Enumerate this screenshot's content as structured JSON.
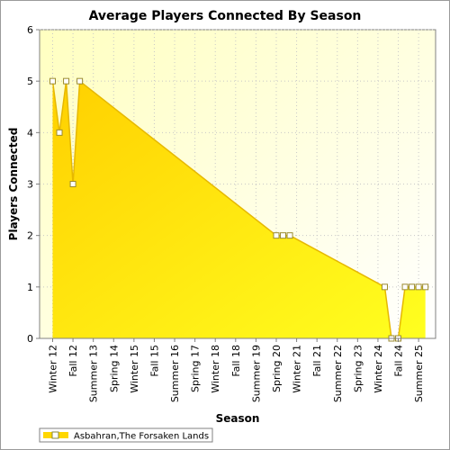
{
  "chart_data": {
    "type": "area",
    "title": "Average Players Connected By Season",
    "xlabel": "Season",
    "ylabel": "Players Connected",
    "ylim": [
      0,
      6
    ],
    "y_ticks": [
      0,
      1,
      2,
      3,
      4,
      5,
      6
    ],
    "grid": true,
    "legend_position": "bottom-left",
    "x_tick_labels": [
      "Winter 12",
      "Fall 12",
      "Summer 13",
      "Spring 14",
      "Winter 15",
      "Fall 15",
      "Summer 16",
      "Spring 17",
      "Winter 18",
      "Fall 18",
      "Summer 19",
      "Spring 20",
      "Winter 21",
      "Fall 21",
      "Summer 22",
      "Spring 23",
      "Winter 24",
      "Fall 24",
      "Summer 25"
    ],
    "series": [
      {
        "name": "Asbahran,The Forsaken Lands",
        "color": "#ffd700",
        "points": [
          {
            "x": "Winter 12",
            "y": 5
          },
          {
            "x": "Spring 12",
            "y": 4
          },
          {
            "x": "Summer 12",
            "y": 5
          },
          {
            "x": "Fall 12",
            "y": 3
          },
          {
            "x": "Winter 13",
            "y": 5
          },
          {
            "x": "Spring 20",
            "y": 2
          },
          {
            "x": "Summer 20",
            "y": 2
          },
          {
            "x": "Fall 20",
            "y": 2
          },
          {
            "x": "Spring 24",
            "y": 1
          },
          {
            "x": "Summer 24",
            "y": 0
          },
          {
            "x": "Fall 24",
            "y": 0
          },
          {
            "x": "Winter 25",
            "y": 1
          },
          {
            "x": "Spring 25",
            "y": 1
          },
          {
            "x": "Summer 25",
            "y": 1
          },
          {
            "x": "Fall 25",
            "y": 1
          }
        ]
      }
    ]
  }
}
